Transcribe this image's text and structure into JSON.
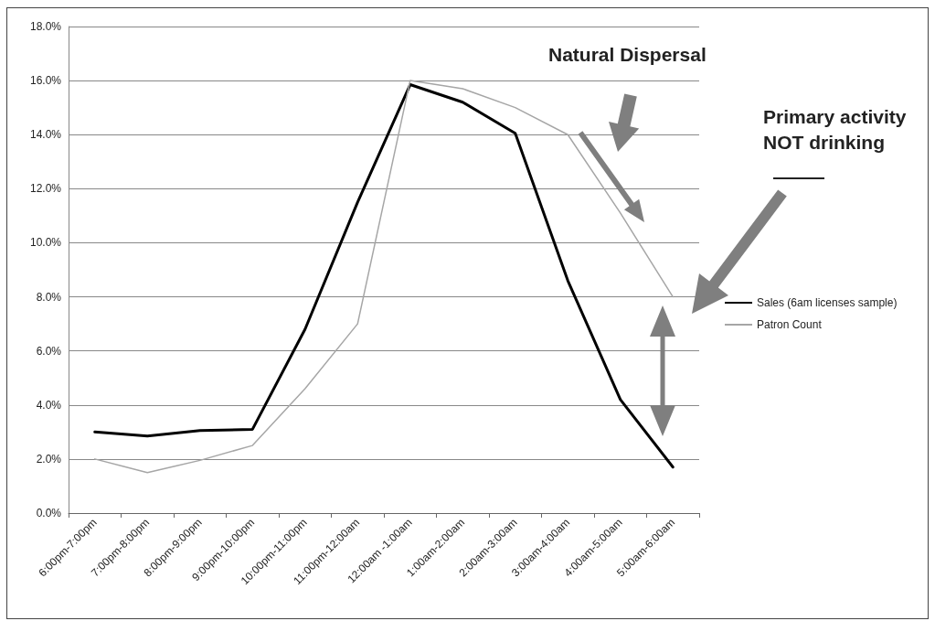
{
  "chart_data": {
    "type": "line",
    "categories": [
      "6:00pm-7:00pm",
      "7:00pm-8:00pm",
      "8:00pm-9:00pm",
      "9:00pm-10:00pm",
      "10:00pm-11:00pm",
      "11:00pm-12:00am",
      "12:00am -1:00am",
      "1:00am-2:00am",
      "2:00am-3:00am",
      "3:00am-4:00am",
      "4:00am-5:00am",
      "5:00am-6:00am"
    ],
    "series": [
      {
        "name": "Sales (6am licenses sample)",
        "color": "#000000",
        "values": [
          3.0,
          2.85,
          3.05,
          3.1,
          6.8,
          11.5,
          15.85,
          15.2,
          14.05,
          8.6,
          4.2,
          1.7
        ]
      },
      {
        "name": "Patron Count",
        "color": "#a6a6a6",
        "values": [
          2.0,
          1.5,
          1.95,
          2.5,
          4.6,
          7.0,
          16.0,
          15.7,
          15.0,
          14.0,
          11.1,
          8.0
        ]
      }
    ],
    "ylim": [
      0,
      18
    ],
    "yticks": [
      {
        "value": 0,
        "label": "0.0%"
      },
      {
        "value": 2,
        "label": "2.0%"
      },
      {
        "value": 4,
        "label": "4.0%"
      },
      {
        "value": 6,
        "label": "6.0%"
      },
      {
        "value": 8,
        "label": "8.0%"
      },
      {
        "value": 10,
        "label": "10.0%"
      },
      {
        "value": 12,
        "label": "12.0%"
      },
      {
        "value": 14,
        "label": "14.0%"
      },
      {
        "value": 16,
        "label": "16.0%"
      },
      {
        "value": 18,
        "label": "18.0%"
      }
    ],
    "annotations": [
      "Natural Dispersal",
      "Primary activity\nNOT drinking"
    ],
    "grid": "y",
    "legend": "right",
    "marker": "none",
    "line_style": "solid"
  }
}
